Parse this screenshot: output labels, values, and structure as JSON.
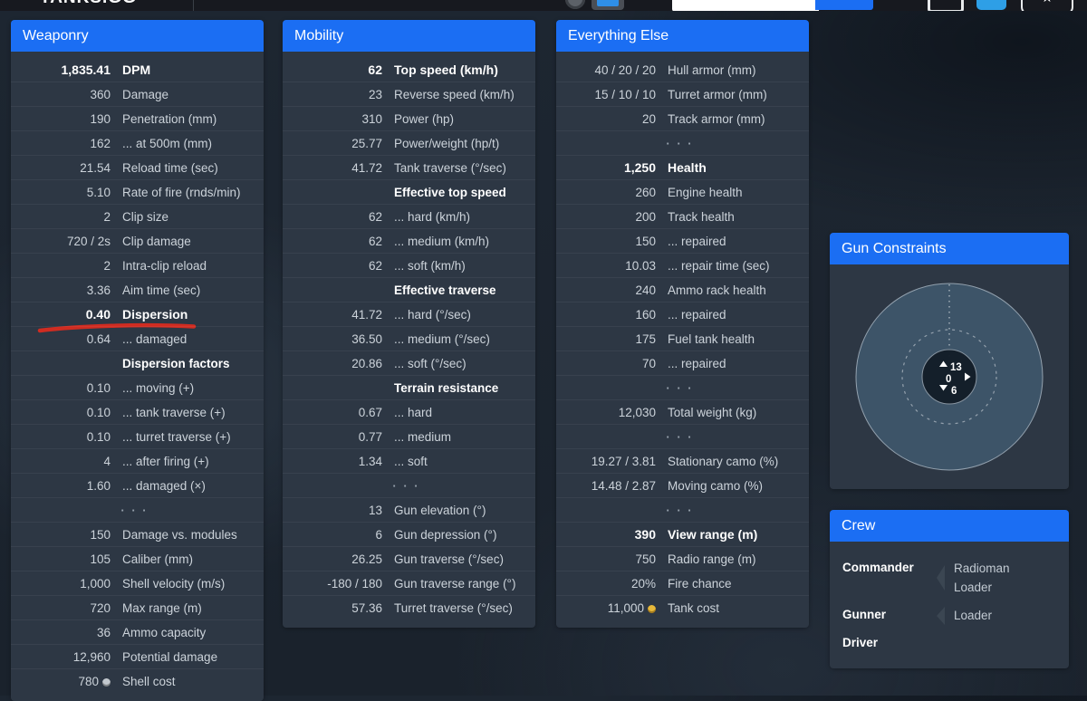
{
  "colors": {
    "accent": "#1b6ef3",
    "panel_body": "#2d3744",
    "red_annotation": "#d92b20",
    "gold_coin": "#e7b83a",
    "silver_coin": "#c2c8ce"
  },
  "navbar": {
    "logo": "TANKS.GG",
    "search_value": "",
    "icons": [
      "nation-emblem",
      "tank-select",
      "chat-bubble",
      "user",
      "favorite-star"
    ],
    "star_glyph": "★"
  },
  "panels": [
    {
      "id": "weaponry",
      "title": "Weaponry",
      "rows": [
        {
          "type": "stat",
          "value": "1,835.41",
          "label": "DPM",
          "bold": true
        },
        {
          "type": "stat",
          "value": "360",
          "label": "Damage"
        },
        {
          "type": "stat",
          "value": "190",
          "label": "Penetration (mm)"
        },
        {
          "type": "stat",
          "value": "162",
          "label": "... at 500m (mm)"
        },
        {
          "type": "stat",
          "value": "21.54",
          "label": "Reload time (sec)"
        },
        {
          "type": "stat",
          "value": "5.10",
          "label": "Rate of fire (rnds/min)"
        },
        {
          "type": "stat",
          "value": "2",
          "label": "Clip size"
        },
        {
          "type": "stat",
          "value": "720 / 2s",
          "label": "Clip damage"
        },
        {
          "type": "stat",
          "value": "2",
          "label": "Intra-clip reload"
        },
        {
          "type": "stat",
          "value": "3.36",
          "label": "Aim time (sec)"
        },
        {
          "type": "stat",
          "value": "0.40",
          "label": "Dispersion",
          "bold": true,
          "underline": true
        },
        {
          "type": "stat",
          "value": "0.64",
          "label": "... damaged"
        },
        {
          "type": "section",
          "label": "Dispersion factors"
        },
        {
          "type": "stat",
          "value": "0.10",
          "label": "... moving (+)"
        },
        {
          "type": "stat",
          "value": "0.10",
          "label": "... tank traverse (+)"
        },
        {
          "type": "stat",
          "value": "0.10",
          "label": "... turret traverse (+)"
        },
        {
          "type": "stat",
          "value": "4",
          "label": "... after firing (+)"
        },
        {
          "type": "stat",
          "value": "1.60",
          "label": "... damaged (×)"
        },
        {
          "type": "ellipsis"
        },
        {
          "type": "stat",
          "value": "150",
          "label": "Damage vs. modules"
        },
        {
          "type": "stat",
          "value": "105",
          "label": "Caliber (mm)"
        },
        {
          "type": "stat",
          "value": "1,000",
          "label": "Shell velocity (m/s)"
        },
        {
          "type": "stat",
          "value": "720",
          "label": "Max range (m)"
        },
        {
          "type": "stat",
          "value": "36",
          "label": "Ammo capacity"
        },
        {
          "type": "stat",
          "value": "12,960",
          "label": "Potential damage"
        },
        {
          "type": "stat",
          "value": "780",
          "label": "Shell cost",
          "coin": "silver"
        }
      ]
    },
    {
      "id": "mobility",
      "title": "Mobility",
      "rows": [
        {
          "type": "stat",
          "value": "62",
          "label": "Top speed (km/h)",
          "bold": true
        },
        {
          "type": "stat",
          "value": "23",
          "label": "Reverse speed (km/h)"
        },
        {
          "type": "stat",
          "value": "310",
          "label": "Power (hp)"
        },
        {
          "type": "stat",
          "value": "25.77",
          "label": "Power/weight (hp/t)"
        },
        {
          "type": "stat",
          "value": "41.72",
          "label": "Tank traverse (°/sec)"
        },
        {
          "type": "section",
          "label": "Effective top speed"
        },
        {
          "type": "stat",
          "value": "62",
          "label": "... hard (km/h)"
        },
        {
          "type": "stat",
          "value": "62",
          "label": "... medium (km/h)"
        },
        {
          "type": "stat",
          "value": "62",
          "label": "... soft (km/h)"
        },
        {
          "type": "section",
          "label": "Effective traverse"
        },
        {
          "type": "stat",
          "value": "41.72",
          "label": "... hard (°/sec)"
        },
        {
          "type": "stat",
          "value": "36.50",
          "label": "... medium (°/sec)"
        },
        {
          "type": "stat",
          "value": "20.86",
          "label": "... soft (°/sec)"
        },
        {
          "type": "section",
          "label": "Terrain resistance"
        },
        {
          "type": "stat",
          "value": "0.67",
          "label": "... hard"
        },
        {
          "type": "stat",
          "value": "0.77",
          "label": "... medium"
        },
        {
          "type": "stat",
          "value": "1.34",
          "label": "... soft"
        },
        {
          "type": "ellipsis"
        },
        {
          "type": "stat",
          "value": "13",
          "label": "Gun elevation (°)"
        },
        {
          "type": "stat",
          "value": "6",
          "label": "Gun depression (°)"
        },
        {
          "type": "stat",
          "value": "26.25",
          "label": "Gun traverse (°/sec)"
        },
        {
          "type": "stat",
          "value": "-180 / 180",
          "label": "Gun traverse range (°)"
        },
        {
          "type": "stat",
          "value": "57.36",
          "label": "Turret traverse (°/sec)"
        }
      ]
    },
    {
      "id": "everything-else",
      "title": "Everything Else",
      "rows": [
        {
          "type": "stat",
          "value": "40 / 20 / 20",
          "label": "Hull armor (mm)"
        },
        {
          "type": "stat",
          "value": "15 / 10 / 10",
          "label": "Turret armor (mm)"
        },
        {
          "type": "stat",
          "value": "20",
          "label": "Track armor (mm)"
        },
        {
          "type": "ellipsis"
        },
        {
          "type": "stat",
          "value": "1,250",
          "label": "Health",
          "bold": true
        },
        {
          "type": "stat",
          "value": "260",
          "label": "Engine health"
        },
        {
          "type": "stat",
          "value": "200",
          "label": "Track health"
        },
        {
          "type": "stat",
          "value": "150",
          "label": "... repaired"
        },
        {
          "type": "stat",
          "value": "10.03",
          "label": "... repair time (sec)"
        },
        {
          "type": "stat",
          "value": "240",
          "label": "Ammo rack health"
        },
        {
          "type": "stat",
          "value": "160",
          "label": "... repaired"
        },
        {
          "type": "stat",
          "value": "175",
          "label": "Fuel tank health"
        },
        {
          "type": "stat",
          "value": "70",
          "label": "... repaired"
        },
        {
          "type": "ellipsis"
        },
        {
          "type": "stat",
          "value": "12,030",
          "label": "Total weight (kg)"
        },
        {
          "type": "ellipsis"
        },
        {
          "type": "stat",
          "value": "19.27 / 3.81",
          "label": "Stationary camo (%)"
        },
        {
          "type": "stat",
          "value": "14.48 / 2.87",
          "label": "Moving camo (%)"
        },
        {
          "type": "ellipsis"
        },
        {
          "type": "stat",
          "value": "390",
          "label": "View range (m)",
          "bold": true
        },
        {
          "type": "stat",
          "value": "750",
          "label": "Radio range (m)"
        },
        {
          "type": "stat",
          "value": "20%",
          "label": "Fire chance"
        },
        {
          "type": "stat",
          "value": "11,000",
          "label": "Tank cost",
          "coin": "gold"
        }
      ]
    }
  ],
  "gun_constraints": {
    "title": "Gun Constraints",
    "elevation": "13",
    "traverse": "0",
    "depression": "6"
  },
  "crew": {
    "title": "Crew",
    "rows": [
      {
        "role": "Commander",
        "extra_roles": [
          "Radioman",
          "Loader"
        ]
      },
      {
        "role": "Gunner",
        "extra_roles": [
          "Loader"
        ]
      },
      {
        "role": "Driver",
        "extra_roles": []
      }
    ]
  }
}
